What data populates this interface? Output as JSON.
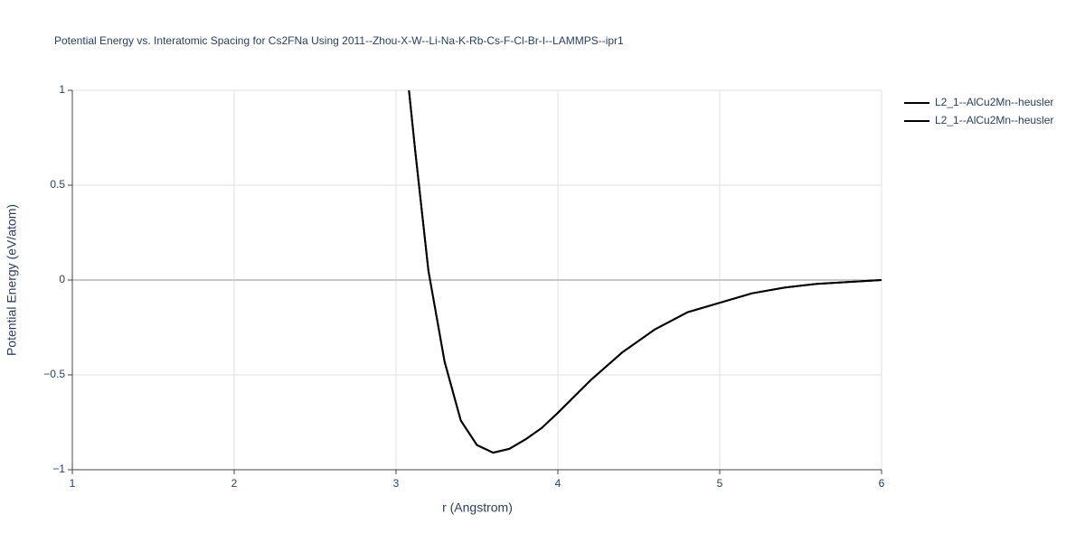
{
  "chart_data": {
    "type": "line",
    "title": "Potential Energy vs. Interatomic Spacing for Cs2FNa Using 2011--Zhou-X-W--Li-Na-K-Rb-Cs-F-Cl-Br-I--LAMMPS--ipr1",
    "x_label": "r (Angstrom)",
    "y_label": "Potential Energy (eV/atom)",
    "xlim": [
      1,
      6
    ],
    "xticks": [
      1,
      2,
      3,
      4,
      5,
      6
    ],
    "ylim": [
      -1,
      1
    ],
    "yticks": [
      {
        "value": -1,
        "label": "−1"
      },
      {
        "value": -0.5,
        "label": "−0.5"
      },
      0,
      0.5,
      1
    ],
    "grid": true,
    "legend": "top-right",
    "series": [
      {
        "name": "L2_1--AlCu2Mn--heusler",
        "color": "#000000",
        "x": [
          3.08,
          3.12,
          3.2,
          3.3,
          3.4,
          3.5,
          3.6,
          3.7,
          3.8,
          3.9,
          4.0,
          4.2,
          4.4,
          4.6,
          4.8,
          5.0,
          5.2,
          5.4,
          5.6,
          5.8,
          6.0
        ],
        "values": [
          1.0,
          0.67,
          0.05,
          -0.43,
          -0.74,
          -0.87,
          -0.91,
          -0.89,
          -0.84,
          -0.78,
          -0.7,
          -0.53,
          -0.38,
          -0.26,
          -0.17,
          -0.12,
          -0.07,
          -0.04,
          -0.02,
          -0.01,
          0.0
        ]
      },
      {
        "name": "L2_1--AlCu2Mn--heusler",
        "color": "#000000",
        "x": [
          3.08,
          3.12,
          3.2,
          3.3,
          3.4,
          3.5,
          3.6,
          3.7,
          3.8,
          3.9,
          4.0,
          4.2,
          4.4,
          4.6,
          4.8,
          5.0,
          5.2,
          5.4,
          5.6,
          5.8,
          6.0
        ],
        "values": [
          1.0,
          0.67,
          0.05,
          -0.43,
          -0.74,
          -0.87,
          -0.91,
          -0.89,
          -0.84,
          -0.78,
          -0.7,
          -0.53,
          -0.38,
          -0.26,
          -0.17,
          -0.12,
          -0.07,
          -0.04,
          -0.02,
          -0.01,
          0.0
        ]
      }
    ]
  }
}
